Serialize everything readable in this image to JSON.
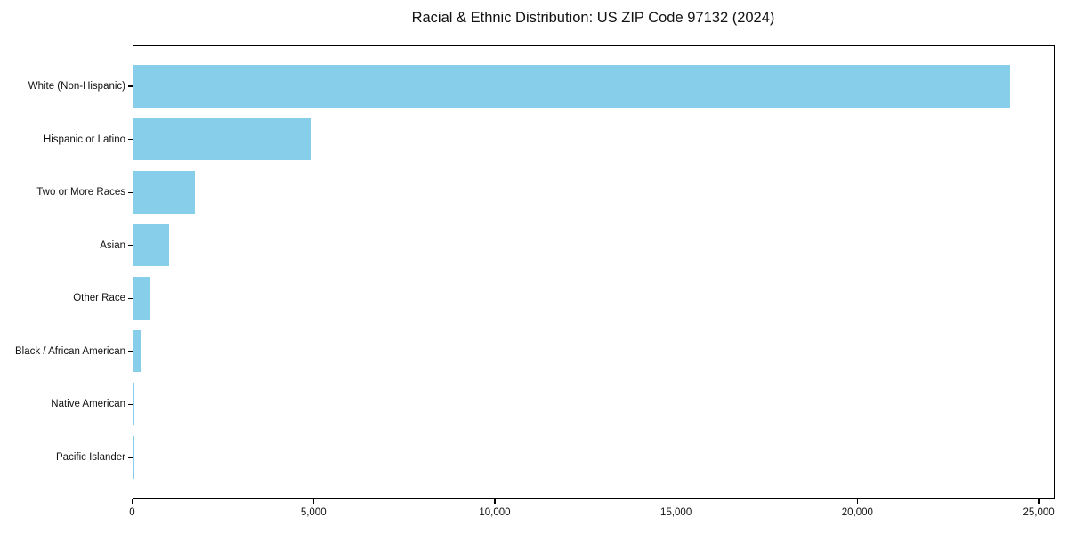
{
  "chart_data": {
    "type": "bar",
    "orientation": "horizontal",
    "title": "Racial & Ethnic Distribution: US ZIP Code 97132 (2024)",
    "categories": [
      "White (Non-Hispanic)",
      "Hispanic or Latino",
      "Two or More Races",
      "Asian",
      "Other Race",
      "Black / African American",
      "Native American",
      "Pacific Islander"
    ],
    "values": [
      24200,
      4900,
      1700,
      1000,
      450,
      220,
      30,
      10
    ],
    "xlabel": "",
    "ylabel": "",
    "xlim": [
      0,
      25440
    ],
    "x_ticks": [
      0,
      5000,
      10000,
      15000,
      20000,
      25000
    ],
    "x_tick_labels": [
      "0",
      "5,000",
      "10,000",
      "15,000",
      "20,000",
      "25,000"
    ],
    "grid": false,
    "legend": null,
    "colors": {
      "bar": "#87CEEB",
      "axis": "#000000",
      "text": "#111111",
      "background": "#FFFFFF"
    }
  }
}
